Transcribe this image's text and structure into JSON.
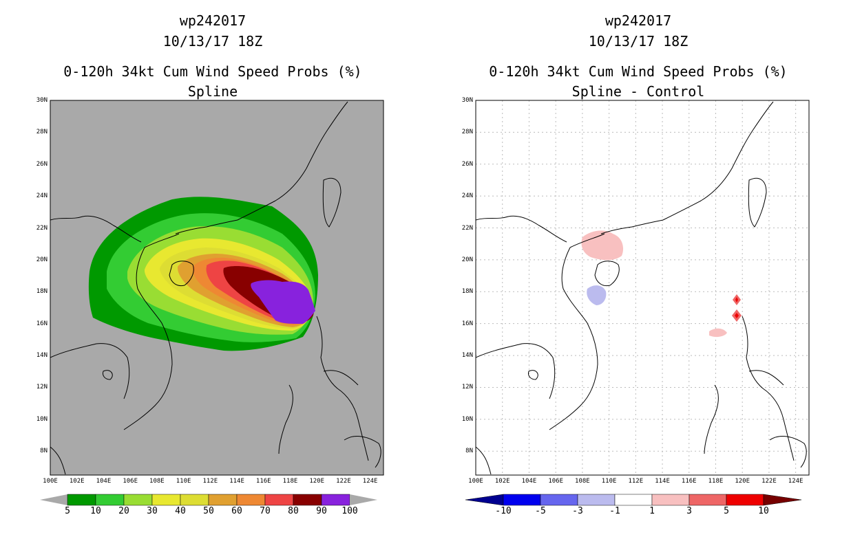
{
  "panels": [
    {
      "title1": "wp242017",
      "title2": "10/13/17 18Z",
      "title3": "0-120h 34kt Cum Wind Speed Probs (%)",
      "title4": "Spline",
      "background": "#a9a9a9",
      "colorbar_labels": [
        "5",
        "10",
        "20",
        "30",
        "40",
        "50",
        "60",
        "70",
        "80",
        "90",
        "100"
      ],
      "colorbar_colors": [
        "#009900",
        "#33cc33",
        "#99dd33",
        "#e8e830",
        "#dddd33",
        "#e0a030",
        "#ee8833",
        "#ee4444",
        "#880000",
        "#8822dd"
      ]
    },
    {
      "title1": "wp242017",
      "title2": "10/13/17 18Z",
      "title3": "0-120h 34kt Cum Wind Speed Probs (%)",
      "title4": "Spline - Control",
      "background": "#ffffff",
      "colorbar_labels": [
        "-10",
        "-5",
        "-3",
        "-1",
        "1",
        "3",
        "5",
        "10"
      ],
      "colorbar_colors": [
        "#000090",
        "#0000ee",
        "#6666ee",
        "#bbbbee",
        "#ffffff",
        "#f8c0c0",
        "#ee6666",
        "#ee0000",
        "#770000"
      ]
    }
  ],
  "lat_labels": [
    "30N",
    "28N",
    "26N",
    "24N",
    "22N",
    "20N",
    "18N",
    "16N",
    "14N",
    "12N",
    "10N",
    "8N"
  ],
  "lon_labels": [
    "100E",
    "102E",
    "104E",
    "106E",
    "108E",
    "110E",
    "112E",
    "114E",
    "116E",
    "118E",
    "120E",
    "122E",
    "124E"
  ],
  "chart_data": [
    {
      "type": "heatmap",
      "title": "0-120h 34kt Cum Wind Speed Probs (%) - Spline",
      "storm": "wp242017",
      "init_time": "10/13/17 18Z",
      "xlim": [
        100,
        125
      ],
      "ylim": [
        6.5,
        30
      ],
      "contour_levels": [
        5,
        10,
        20,
        30,
        40,
        50,
        60,
        70,
        80,
        90,
        100
      ],
      "max_probability_region_lonlat": [
        [
          116,
          18.5
        ],
        [
          119.5,
          18.5
        ],
        [
          120,
          17
        ],
        [
          119.5,
          16
        ],
        [
          118,
          16
        ]
      ]
    },
    {
      "type": "heatmap",
      "title": "0-120h 34kt Cum Wind Speed Probs (%) - Spline - Control",
      "storm": "wp242017",
      "init_time": "10/13/17 18Z",
      "xlim": [
        100,
        125
      ],
      "ylim": [
        6.5,
        30
      ],
      "contour_levels": [
        -10,
        -5,
        -3,
        -1,
        1,
        3,
        5,
        10
      ],
      "positive_areas_lonlat": [
        [
          109.5,
          20.2
        ],
        [
          119.4,
          17.5
        ],
        [
          119.5,
          16.5
        ],
        [
          118.2,
          15.4
        ]
      ],
      "negative_areas_lonlat": [
        [
          109.8,
          17.8
        ]
      ]
    }
  ]
}
